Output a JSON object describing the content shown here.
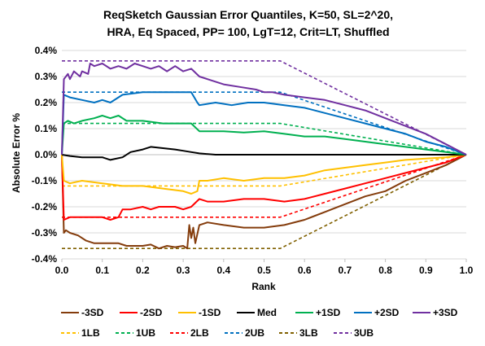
{
  "chart_data": {
    "type": "line",
    "title_lines": [
      "ReqSketch Gaussian Error Quantiles, K=50, SL=2^20,",
      "HRA, Eq Spaced, PP= 100, LgT=12, Crit=LT, Shuffled"
    ],
    "xlabel": "Rank",
    "ylabel": "Absolute Error %",
    "xlim": [
      0.0,
      1.0
    ],
    "ylim": [
      -0.4,
      0.4
    ],
    "x_ticks": [
      "0.0",
      "0.1",
      "0.2",
      "0.3",
      "0.4",
      "0.5",
      "0.6",
      "0.7",
      "0.8",
      "0.9",
      "1.0"
    ],
    "y_ticks": [
      "-0.4%",
      "-0.3%",
      "-0.2%",
      "-0.1%",
      "0.0%",
      "0.1%",
      "0.2%",
      "0.3%",
      "0.4%"
    ],
    "grid": "horizontal",
    "legend_position": "bottom",
    "series": [
      {
        "name": "-3SD",
        "color": "#843c0c",
        "dash": false,
        "points": [
          [
            0,
            0
          ],
          [
            0.005,
            -0.3
          ],
          [
            0.01,
            -0.29
          ],
          [
            0.02,
            -0.3
          ],
          [
            0.04,
            -0.31
          ],
          [
            0.06,
            -0.33
          ],
          [
            0.08,
            -0.34
          ],
          [
            0.1,
            -0.34
          ],
          [
            0.12,
            -0.34
          ],
          [
            0.14,
            -0.34
          ],
          [
            0.16,
            -0.35
          ],
          [
            0.18,
            -0.35
          ],
          [
            0.2,
            -0.35
          ],
          [
            0.22,
            -0.345
          ],
          [
            0.24,
            -0.36
          ],
          [
            0.26,
            -0.35
          ],
          [
            0.28,
            -0.355
          ],
          [
            0.3,
            -0.35
          ],
          [
            0.31,
            -0.36
          ],
          [
            0.315,
            -0.27
          ],
          [
            0.32,
            -0.32
          ],
          [
            0.325,
            -0.28
          ],
          [
            0.33,
            -0.34
          ],
          [
            0.34,
            -0.27
          ],
          [
            0.36,
            -0.26
          ],
          [
            0.4,
            -0.27
          ],
          [
            0.45,
            -0.28
          ],
          [
            0.5,
            -0.28
          ],
          [
            0.55,
            -0.27
          ],
          [
            0.6,
            -0.25
          ],
          [
            0.65,
            -0.22
          ],
          [
            0.7,
            -0.19
          ],
          [
            0.75,
            -0.16
          ],
          [
            0.8,
            -0.14
          ],
          [
            0.85,
            -0.1
          ],
          [
            0.9,
            -0.07
          ],
          [
            0.95,
            -0.04
          ],
          [
            1.0,
            0
          ]
        ]
      },
      {
        "name": "-2SD",
        "color": "#ff0000",
        "dash": false,
        "points": [
          [
            0,
            0
          ],
          [
            0.005,
            -0.25
          ],
          [
            0.02,
            -0.24
          ],
          [
            0.05,
            -0.24
          ],
          [
            0.1,
            -0.24
          ],
          [
            0.12,
            -0.25
          ],
          [
            0.14,
            -0.24
          ],
          [
            0.15,
            -0.21
          ],
          [
            0.17,
            -0.21
          ],
          [
            0.2,
            -0.2
          ],
          [
            0.22,
            -0.21
          ],
          [
            0.24,
            -0.2
          ],
          [
            0.26,
            -0.2
          ],
          [
            0.28,
            -0.2
          ],
          [
            0.3,
            -0.21
          ],
          [
            0.32,
            -0.2
          ],
          [
            0.34,
            -0.17
          ],
          [
            0.36,
            -0.18
          ],
          [
            0.4,
            -0.18
          ],
          [
            0.45,
            -0.17
          ],
          [
            0.5,
            -0.17
          ],
          [
            0.55,
            -0.18
          ],
          [
            0.6,
            -0.17
          ],
          [
            0.65,
            -0.15
          ],
          [
            0.7,
            -0.13
          ],
          [
            0.75,
            -0.11
          ],
          [
            0.8,
            -0.09
          ],
          [
            0.85,
            -0.07
          ],
          [
            0.9,
            -0.05
          ],
          [
            0.95,
            -0.03
          ],
          [
            1.0,
            0
          ]
        ]
      },
      {
        "name": "-1SD",
        "color": "#ffc000",
        "dash": false,
        "points": [
          [
            0,
            0
          ],
          [
            0.005,
            -0.1
          ],
          [
            0.02,
            -0.11
          ],
          [
            0.05,
            -0.1
          ],
          [
            0.1,
            -0.11
          ],
          [
            0.15,
            -0.12
          ],
          [
            0.2,
            -0.12
          ],
          [
            0.25,
            -0.13
          ],
          [
            0.3,
            -0.14
          ],
          [
            0.32,
            -0.15
          ],
          [
            0.335,
            -0.14
          ],
          [
            0.34,
            -0.1
          ],
          [
            0.36,
            -0.1
          ],
          [
            0.4,
            -0.09
          ],
          [
            0.45,
            -0.1
          ],
          [
            0.5,
            -0.09
          ],
          [
            0.55,
            -0.09
          ],
          [
            0.6,
            -0.08
          ],
          [
            0.65,
            -0.06
          ],
          [
            0.7,
            -0.05
          ],
          [
            0.75,
            -0.04
          ],
          [
            0.8,
            -0.03
          ],
          [
            0.85,
            -0.02
          ],
          [
            0.9,
            -0.015
          ],
          [
            0.95,
            -0.01
          ],
          [
            1.0,
            0
          ]
        ]
      },
      {
        "name": "Med",
        "color": "#000000",
        "dash": false,
        "points": [
          [
            0,
            0
          ],
          [
            0.02,
            -0.005
          ],
          [
            0.05,
            -0.01
          ],
          [
            0.1,
            -0.01
          ],
          [
            0.12,
            -0.02
          ],
          [
            0.15,
            -0.01
          ],
          [
            0.17,
            0.01
          ],
          [
            0.2,
            0.02
          ],
          [
            0.22,
            0.03
          ],
          [
            0.25,
            0.025
          ],
          [
            0.28,
            0.02
          ],
          [
            0.3,
            0.015
          ],
          [
            0.32,
            0.01
          ],
          [
            0.34,
            0.005
          ],
          [
            0.38,
            0.0
          ],
          [
            0.45,
            0.0
          ],
          [
            0.5,
            0.0
          ],
          [
            0.6,
            0.0
          ],
          [
            0.7,
            0.0
          ],
          [
            0.8,
            0.0
          ],
          [
            0.9,
            0.0
          ],
          [
            1.0,
            0
          ]
        ]
      },
      {
        "name": "+1SD",
        "color": "#00b050",
        "dash": false,
        "points": [
          [
            0,
            0
          ],
          [
            0.005,
            0.12
          ],
          [
            0.015,
            0.13
          ],
          [
            0.03,
            0.12
          ],
          [
            0.05,
            0.13
          ],
          [
            0.08,
            0.14
          ],
          [
            0.1,
            0.15
          ],
          [
            0.12,
            0.14
          ],
          [
            0.14,
            0.15
          ],
          [
            0.16,
            0.13
          ],
          [
            0.2,
            0.13
          ],
          [
            0.25,
            0.12
          ],
          [
            0.3,
            0.12
          ],
          [
            0.32,
            0.12
          ],
          [
            0.34,
            0.09
          ],
          [
            0.4,
            0.09
          ],
          [
            0.45,
            0.085
          ],
          [
            0.5,
            0.09
          ],
          [
            0.55,
            0.08
          ],
          [
            0.6,
            0.07
          ],
          [
            0.65,
            0.07
          ],
          [
            0.7,
            0.06
          ],
          [
            0.75,
            0.05
          ],
          [
            0.8,
            0.04
          ],
          [
            0.85,
            0.03
          ],
          [
            0.9,
            0.02
          ],
          [
            0.95,
            0.01
          ],
          [
            1.0,
            0
          ]
        ]
      },
      {
        "name": "+2SD",
        "color": "#0070c0",
        "dash": false,
        "points": [
          [
            0,
            0
          ],
          [
            0.005,
            0.23
          ],
          [
            0.02,
            0.22
          ],
          [
            0.05,
            0.21
          ],
          [
            0.08,
            0.2
          ],
          [
            0.1,
            0.21
          ],
          [
            0.12,
            0.2
          ],
          [
            0.15,
            0.23
          ],
          [
            0.2,
            0.24
          ],
          [
            0.25,
            0.24
          ],
          [
            0.3,
            0.24
          ],
          [
            0.32,
            0.24
          ],
          [
            0.335,
            0.2
          ],
          [
            0.34,
            0.19
          ],
          [
            0.38,
            0.2
          ],
          [
            0.42,
            0.19
          ],
          [
            0.46,
            0.2
          ],
          [
            0.5,
            0.2
          ],
          [
            0.55,
            0.19
          ],
          [
            0.6,
            0.18
          ],
          [
            0.65,
            0.16
          ],
          [
            0.7,
            0.14
          ],
          [
            0.75,
            0.12
          ],
          [
            0.8,
            0.1
          ],
          [
            0.85,
            0.08
          ],
          [
            0.9,
            0.05
          ],
          [
            0.95,
            0.03
          ],
          [
            1.0,
            0
          ]
        ]
      },
      {
        "name": "+3SD",
        "color": "#7030a0",
        "dash": false,
        "points": [
          [
            0,
            0
          ],
          [
            0.005,
            0.29
          ],
          [
            0.015,
            0.31
          ],
          [
            0.02,
            0.29
          ],
          [
            0.03,
            0.32
          ],
          [
            0.045,
            0.3
          ],
          [
            0.05,
            0.32
          ],
          [
            0.065,
            0.31
          ],
          [
            0.07,
            0.35
          ],
          [
            0.08,
            0.34
          ],
          [
            0.1,
            0.35
          ],
          [
            0.12,
            0.33
          ],
          [
            0.14,
            0.34
          ],
          [
            0.16,
            0.33
          ],
          [
            0.18,
            0.35
          ],
          [
            0.2,
            0.34
          ],
          [
            0.22,
            0.33
          ],
          [
            0.24,
            0.34
          ],
          [
            0.26,
            0.32
          ],
          [
            0.28,
            0.34
          ],
          [
            0.3,
            0.32
          ],
          [
            0.32,
            0.33
          ],
          [
            0.34,
            0.3
          ],
          [
            0.36,
            0.29
          ],
          [
            0.4,
            0.27
          ],
          [
            0.44,
            0.26
          ],
          [
            0.48,
            0.25
          ],
          [
            0.5,
            0.24
          ],
          [
            0.52,
            0.24
          ],
          [
            0.55,
            0.23
          ],
          [
            0.6,
            0.22
          ],
          [
            0.65,
            0.21
          ],
          [
            0.7,
            0.19
          ],
          [
            0.75,
            0.17
          ],
          [
            0.8,
            0.14
          ],
          [
            0.85,
            0.11
          ],
          [
            0.9,
            0.08
          ],
          [
            0.95,
            0.04
          ],
          [
            1.0,
            0
          ]
        ]
      },
      {
        "name": "1LB",
        "color": "#ffc000",
        "dash": true,
        "points": [
          [
            0,
            -0.12
          ],
          [
            0.54,
            -0.12
          ],
          [
            1.0,
            0
          ]
        ]
      },
      {
        "name": "1UB",
        "color": "#00b050",
        "dash": true,
        "points": [
          [
            0,
            0.12
          ],
          [
            0.54,
            0.12
          ],
          [
            1.0,
            0
          ]
        ]
      },
      {
        "name": "2LB",
        "color": "#ff0000",
        "dash": true,
        "points": [
          [
            0,
            -0.24
          ],
          [
            0.54,
            -0.24
          ],
          [
            1.0,
            0
          ]
        ]
      },
      {
        "name": "2UB",
        "color": "#0070c0",
        "dash": true,
        "points": [
          [
            0,
            0.24
          ],
          [
            0.54,
            0.24
          ],
          [
            1.0,
            0
          ]
        ]
      },
      {
        "name": "3LB",
        "color": "#806000",
        "dash": true,
        "points": [
          [
            0,
            -0.36
          ],
          [
            0.54,
            -0.36
          ],
          [
            1.0,
            0
          ]
        ]
      },
      {
        "name": "3UB",
        "color": "#7030a0",
        "dash": true,
        "points": [
          [
            0,
            0.36
          ],
          [
            0.54,
            0.36
          ],
          [
            1.0,
            0
          ]
        ]
      }
    ]
  }
}
